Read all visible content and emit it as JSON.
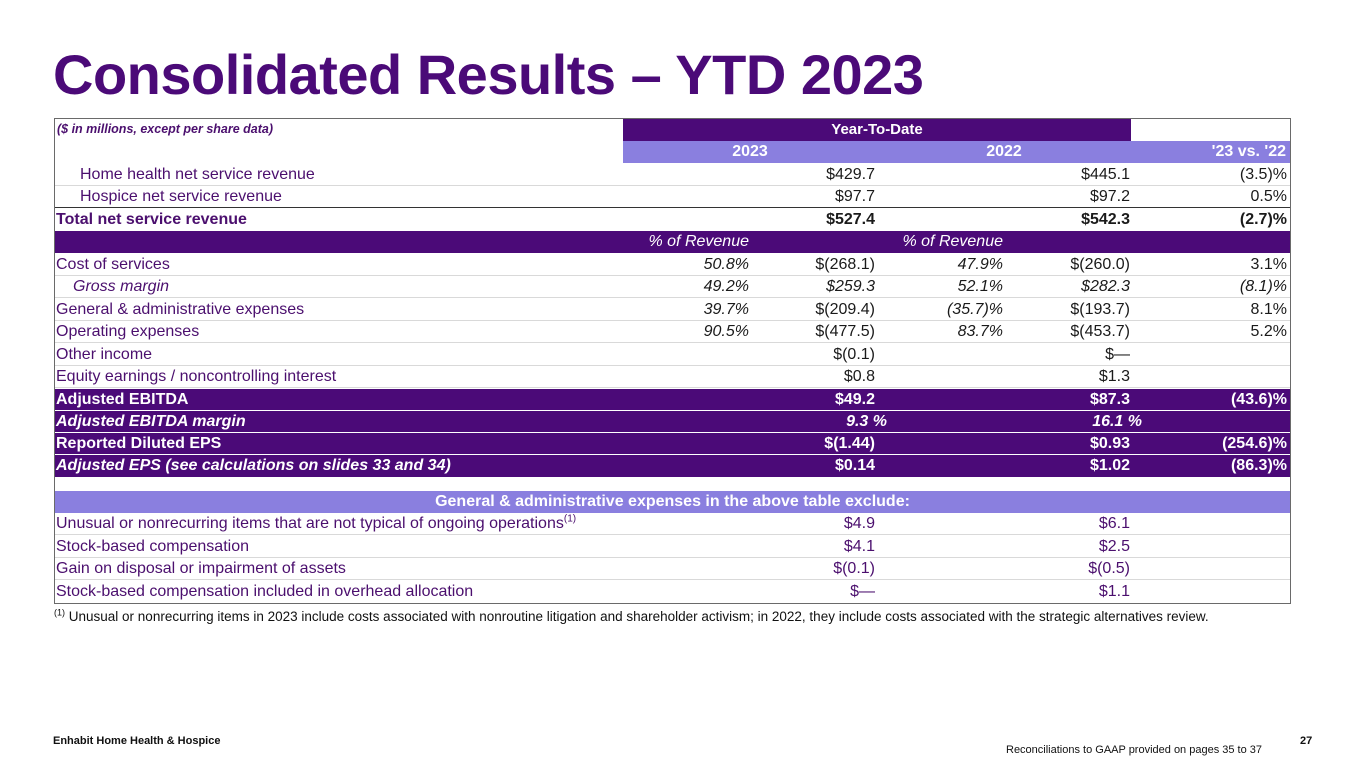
{
  "slide": {
    "title": "Consolidated Results – YTD 2023",
    "footer_company": "Enhabit Home Health & Hospice",
    "footer_note": "Reconciliations to GAAP provided on pages 35 to 37",
    "page_number": "27",
    "footnote_marker": "(1)",
    "footnote_text": "Unusual or nonrecurring items in 2023 include costs associated with nonroutine litigation and shareholder activism; in 2022, they include costs associated with the strategic alternatives review."
  },
  "table": {
    "unit_note": "($ in millions, except per share data)",
    "period_header": "Year-To-Date",
    "col_2023": "2023",
    "col_2022": "2022",
    "col_change": "'23 vs. '22",
    "pct_header_2023": "% of Revenue",
    "pct_header_2022": "% of Revenue",
    "revenue_rows": [
      {
        "label": "Home health net service revenue",
        "v2023": "$429.7",
        "v2022": "$445.1",
        "change": "(3.5)%"
      },
      {
        "label": "Hospice net service revenue",
        "v2023": "$97.7",
        "v2022": "$97.2",
        "change": "0.5%"
      },
      {
        "label": "Total net service revenue",
        "v2023": "$527.4",
        "v2022": "$542.3",
        "change": "(2.7)%"
      }
    ],
    "expense_rows": [
      {
        "label": "Cost of services",
        "p2023": "50.8%",
        "v2023": "$(268.1)",
        "p2022": "47.9%",
        "v2022": "$(260.0)",
        "change": "3.1%"
      },
      {
        "label": "Gross margin",
        "p2023": "49.2%",
        "v2023": "$259.3",
        "p2022": "52.1%",
        "v2022": "$282.3",
        "change": "(8.1)%"
      },
      {
        "label": "General & administrative expenses",
        "p2023": "39.7%",
        "v2023": "$(209.4)",
        "p2022": "(35.7)%",
        "v2022": "$(193.7)",
        "change": "8.1%"
      },
      {
        "label": "Operating expenses",
        "p2023": "90.5%",
        "v2023": "$(477.5)",
        "p2022": "83.7%",
        "v2022": "$(453.7)",
        "change": "5.2%"
      },
      {
        "label": "Other income",
        "p2023": "",
        "v2023": "$(0.1)",
        "p2022": "",
        "v2022": "$—",
        "change": ""
      },
      {
        "label": "Equity earnings / noncontrolling interest",
        "p2023": "",
        "v2023": "$0.8",
        "p2022": "",
        "v2022": "$1.3",
        "change": ""
      }
    ],
    "summary_rows": [
      {
        "label": "Adjusted EBITDA",
        "v2023": "$49.2",
        "v2022": "$87.3",
        "change": "(43.6)%"
      },
      {
        "label": "Adjusted EBITDA margin",
        "v2023": "9.3 %",
        "v2022": "16.1 %",
        "change": ""
      },
      {
        "label": "Reported Diluted EPS",
        "v2023": "$(1.44)",
        "v2022": "$0.93",
        "change": "(254.6)%"
      },
      {
        "label": "Adjusted EPS (see calculations on slides 33 and 34)",
        "v2023": "$0.14",
        "v2022": "$1.02",
        "change": "(86.3)%"
      }
    ],
    "exclusions_header": "General & administrative expenses in the above table exclude:",
    "exclusion_rows": [
      {
        "label": "Unusual or nonrecurring items that are not typical of ongoing operations",
        "sup": "(1)",
        "v2023": "$4.9",
        "v2022": "$6.1"
      },
      {
        "label": "Stock-based compensation",
        "sup": "",
        "v2023": "$4.1",
        "v2022": "$2.5"
      },
      {
        "label": "Gain on disposal or impairment of assets",
        "sup": "",
        "v2023": "$(0.1)",
        "v2022": "$(0.5)"
      },
      {
        "label": "Stock-based compensation included in overhead allocation",
        "sup": "",
        "v2023": "$—",
        "v2022": "$1.1"
      }
    ]
  },
  "colors": {
    "brand_purple": "#4b0a78",
    "lavender": "#8a7fdf",
    "text_purple": "#4b0f6e"
  }
}
